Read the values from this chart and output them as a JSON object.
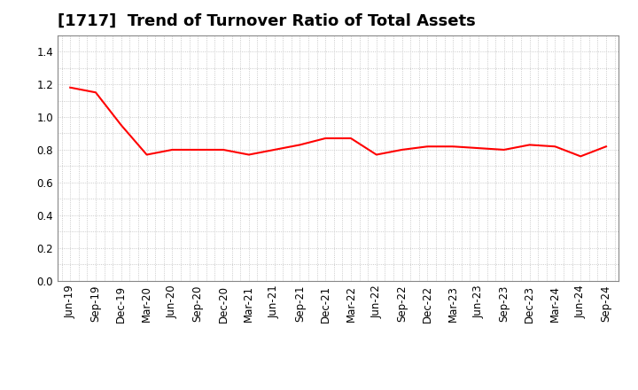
{
  "title": "[1717]  Trend of Turnover Ratio of Total Assets",
  "labels": [
    "Jun-19",
    "Sep-19",
    "Dec-19",
    "Mar-20",
    "Jun-20",
    "Sep-20",
    "Dec-20",
    "Mar-21",
    "Jun-21",
    "Sep-21",
    "Dec-21",
    "Mar-22",
    "Jun-22",
    "Sep-22",
    "Dec-22",
    "Mar-23",
    "Jun-23",
    "Sep-23",
    "Dec-23",
    "Mar-24",
    "Jun-24",
    "Sep-24"
  ],
  "values": [
    1.18,
    1.15,
    0.95,
    0.77,
    0.8,
    0.8,
    0.8,
    0.77,
    0.8,
    0.83,
    0.87,
    0.87,
    0.77,
    0.8,
    0.82,
    0.82,
    0.81,
    0.8,
    0.83,
    0.82,
    0.76,
    0.82
  ],
  "line_color": "#FF0000",
  "background_color": "#ffffff",
  "plot_bg_color": "#ffffff",
  "grid_color": "#bbbbbb",
  "ylim": [
    0.0,
    1.5
  ],
  "yticks": [
    0.0,
    0.2,
    0.4,
    0.6,
    0.8,
    1.0,
    1.2,
    1.4
  ],
  "title_fontsize": 13,
  "tick_fontsize": 8.5,
  "line_width": 1.5
}
